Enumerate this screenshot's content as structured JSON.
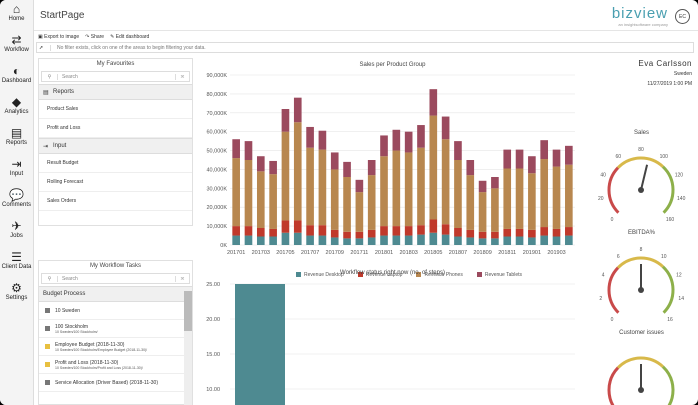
{
  "app": {
    "title": "StartPage",
    "logo": "bizview",
    "logo_sub": "an insightsoftware company",
    "avatar": "EC"
  },
  "nav": [
    {
      "label": "Home",
      "icon": "home-icon"
    },
    {
      "label": "Workflow",
      "icon": "workflow-icon"
    },
    {
      "label": "Dashboard",
      "icon": "dashboard-icon"
    },
    {
      "label": "Analytics",
      "icon": "analytics-icon"
    },
    {
      "label": "Reports",
      "icon": "reports-icon"
    },
    {
      "label": "Input",
      "icon": "input-icon"
    },
    {
      "label": "Comments",
      "icon": "comments-icon"
    },
    {
      "label": "Jobs",
      "icon": "jobs-icon"
    },
    {
      "label": "Client Data",
      "icon": "client-data-icon"
    },
    {
      "label": "Settings",
      "icon": "settings-icon"
    }
  ],
  "toolbar": {
    "export": "Export to image",
    "share": "Share",
    "edit": "Edit dashboard"
  },
  "filter": {
    "text": "No filter exists, click on one of the areas to begin filtering your data."
  },
  "favourites": {
    "title": "My Favourites",
    "search_placeholder": "Search",
    "groups": [
      {
        "label": "Reports",
        "items": [
          "Product Sales",
          "Profit and Loss"
        ]
      },
      {
        "label": "Input",
        "items": [
          "Result Budget",
          "Rolling Forecast",
          "Sales Orders"
        ]
      }
    ]
  },
  "tasks": {
    "title": "My Workflow Tasks",
    "search_placeholder": "Search",
    "group": "Budget Process",
    "items": [
      {
        "label": "10 Sweden",
        "sub": "",
        "color": "#777"
      },
      {
        "label": "100 Stockholm",
        "sub": "10 Sweden/100 Stockholm/",
        "color": "#777"
      },
      {
        "label": "Employee Budget (2018-11-30)",
        "sub": "10 Sweden/100 Stockholm/Employee Budget (2018-11-30)/",
        "color": "#e8c040"
      },
      {
        "label": "Profit and Loss (2018-11-30)",
        "sub": "10 Sweden/100 Stockholm/Profit and Loss (2018-11-30)/",
        "color": "#e8c040"
      },
      {
        "label": "Service Allocation (Driver Based) (2018-11-30)",
        "sub": "",
        "color": "#777"
      }
    ]
  },
  "user": {
    "name": "Eva Carlsson",
    "country": "Sweden",
    "datetime": "11/27/2019  1:00 PM"
  },
  "gauges": [
    {
      "title": "Sales",
      "value": 0.55,
      "ticks": [
        "0",
        "20",
        "40",
        "60",
        "80",
        "100",
        "120",
        "140",
        "160"
      ]
    },
    {
      "title": "EBITDA%",
      "value": 0.5,
      "ticks": [
        "0",
        "2",
        "4",
        "6",
        "8",
        "10",
        "12",
        "14",
        "16"
      ]
    },
    {
      "title": "Customer issues",
      "value": 0.5,
      "ticks": []
    }
  ],
  "chart_data": [
    {
      "type": "bar",
      "title": "Sales per Product Group",
      "stacked": true,
      "ylim": [
        0,
        90000
      ],
      "yticks": [
        "0K",
        "10,000K",
        "20,000K",
        "30,000K",
        "40,000K",
        "50,000K",
        "60,000K",
        "70,000K",
        "80,000K",
        "90,000K"
      ],
      "xticks": [
        "201701",
        "201703",
        "201705",
        "201707",
        "201709",
        "201711",
        "201801",
        "201803",
        "201805",
        "201807",
        "201809",
        "201811",
        "201901",
        "201903"
      ],
      "categories": [
        "201701",
        "201702",
        "201703",
        "201704",
        "201705",
        "201706",
        "201707",
        "201708",
        "201709",
        "201710",
        "201711",
        "201712",
        "201801",
        "201802",
        "201803",
        "201804",
        "201805",
        "201806",
        "201807",
        "201808",
        "201809",
        "201810",
        "201811",
        "201812",
        "201901",
        "201902",
        "201903",
        "201904"
      ],
      "series": [
        {
          "name": "Revenue Desktop",
          "color": "#4e8a91",
          "values": [
            5000,
            5000,
            4500,
            4500,
            6500,
            6500,
            5000,
            5000,
            4000,
            3500,
            3500,
            4000,
            5000,
            5000,
            5000,
            5500,
            6500,
            5500,
            4500,
            4000,
            3500,
            3500,
            4500,
            4500,
            4000,
            5000,
            4500,
            5000
          ]
        },
        {
          "name": "Revenue Laptop",
          "color": "#c0392b",
          "values": [
            5000,
            5000,
            4500,
            4000,
            6500,
            6500,
            5500,
            5500,
            4000,
            3500,
            3500,
            4000,
            5000,
            5000,
            5000,
            5000,
            7000,
            5500,
            4500,
            4000,
            3500,
            3500,
            4000,
            4000,
            4000,
            4500,
            4000,
            4500
          ]
        },
        {
          "name": "Revenue Phones",
          "color": "#b8874f",
          "values": [
            36000,
            35000,
            30000,
            29000,
            47000,
            52000,
            41000,
            40000,
            32000,
            29000,
            21000,
            29000,
            37000,
            40000,
            39000,
            41000,
            55000,
            45000,
            36000,
            29000,
            21000,
            23000,
            32000,
            32000,
            30000,
            36000,
            33000,
            33000
          ]
        },
        {
          "name": "Revenue Tablets",
          "color": "#9b4a5e",
          "values": [
            10000,
            10000,
            8000,
            7000,
            12000,
            13000,
            11000,
            10000,
            9000,
            8000,
            6500,
            8000,
            11000,
            11000,
            11000,
            12000,
            14000,
            12000,
            10000,
            8000,
            6000,
            6000,
            10000,
            10000,
            9000,
            10000,
            9000,
            10000
          ]
        }
      ]
    },
    {
      "type": "bar",
      "title": "Workflow status right now (no. of steps)",
      "ylim": [
        10,
        25
      ],
      "yticks": [
        "25.00",
        "20.00",
        "15.00",
        "10.00"
      ],
      "categories": [
        ""
      ],
      "values": [
        25
      ],
      "color": "#4e8a91"
    }
  ]
}
